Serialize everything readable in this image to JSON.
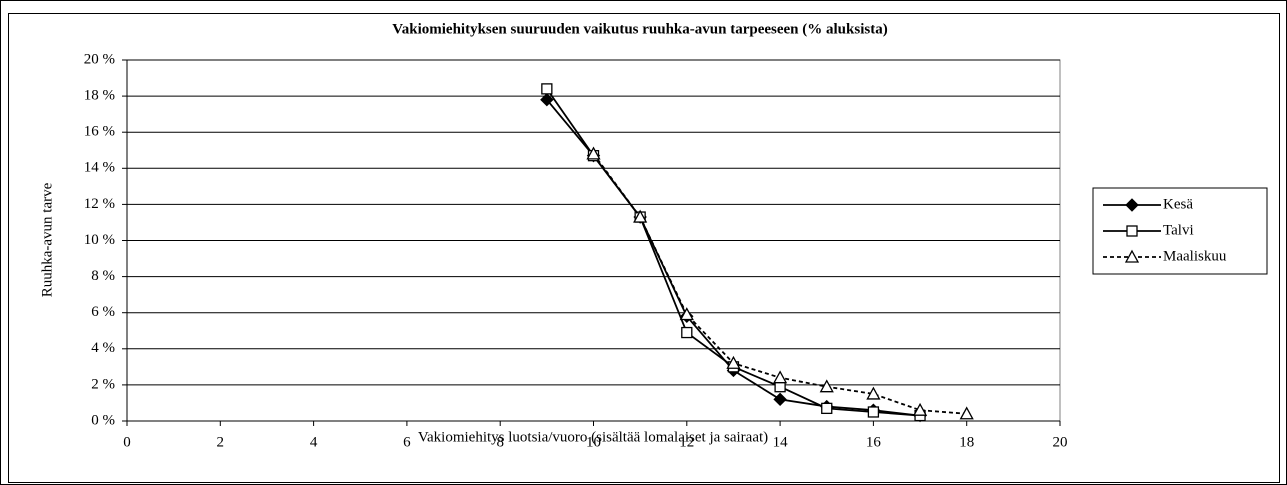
{
  "chart_data": {
    "type": "line",
    "title": "Vakiomiehityksen suuruuden vaikutus ruuhka-avun tarpeeseen (% aluksista)",
    "x_label": "Vakiomiehitys luotsia/vuoro (sisältää lomalaiset ja sairaat)",
    "y_label": "Ruuhka-avun tarve",
    "x": [
      9,
      10,
      11,
      12,
      13,
      14,
      15,
      16,
      17,
      18
    ],
    "series": [
      {
        "name": "Kesä",
        "color": "#000000",
        "marker": "diamond",
        "line_style": "solid",
        "values": [
          17.8,
          14.7,
          11.3,
          5.8,
          2.8,
          1.2,
          0.8,
          0.6,
          0.3,
          null
        ]
      },
      {
        "name": "Talvi",
        "color": "#000000",
        "marker": "square",
        "line_style": "solid",
        "values": [
          18.4,
          14.7,
          11.3,
          4.9,
          3.0,
          1.9,
          0.7,
          0.5,
          0.3,
          null
        ]
      },
      {
        "name": "Maaliskuu",
        "color": "#000000",
        "marker": "triangle",
        "line_style": "dashed",
        "values": [
          null,
          14.8,
          11.3,
          5.9,
          3.2,
          2.4,
          1.9,
          1.5,
          0.6,
          0.4
        ]
      }
    ],
    "xlim": [
      0,
      20
    ],
    "xticks": [
      0,
      2,
      4,
      6,
      8,
      10,
      12,
      14,
      16,
      18,
      20
    ],
    "ylim": [
      0,
      20
    ],
    "yticks": [
      {
        "value": 0,
        "label": "0 %"
      },
      {
        "value": 2,
        "label": "2 %"
      },
      {
        "value": 4,
        "label": "4 %"
      },
      {
        "value": 6,
        "label": "6 %"
      },
      {
        "value": 8,
        "label": "8 %"
      },
      {
        "value": 10,
        "label": "10 %"
      },
      {
        "value": 12,
        "label": "12 %"
      },
      {
        "value": 14,
        "label": "14 %"
      },
      {
        "value": 16,
        "label": "16 %"
      },
      {
        "value": 18,
        "label": "18 %"
      },
      {
        "value": 20,
        "label": "20 %"
      }
    ],
    "grid": true,
    "legend": "right"
  }
}
